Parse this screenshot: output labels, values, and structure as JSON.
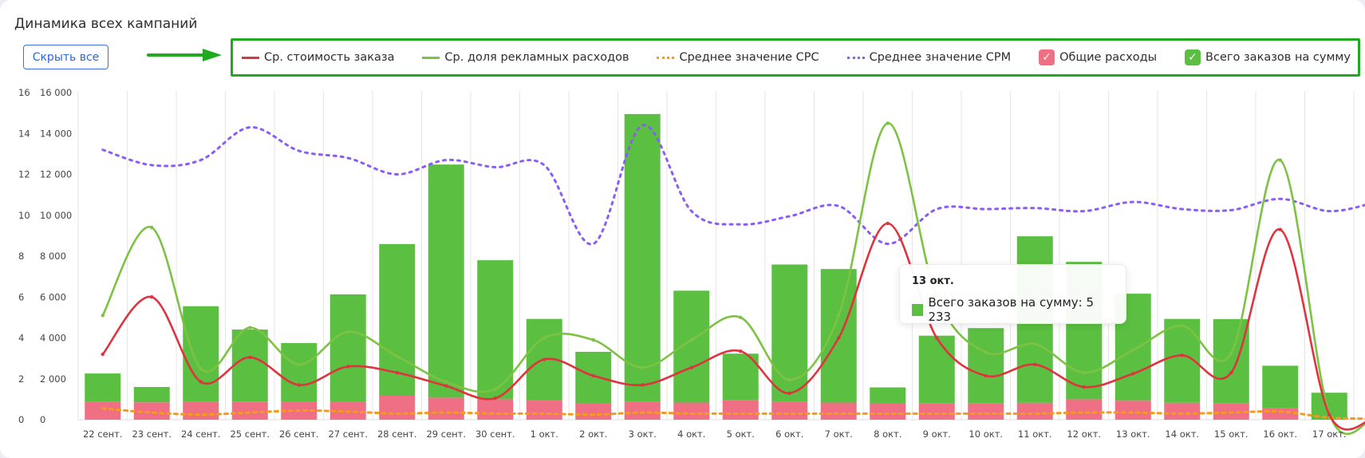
{
  "title": "Динамика всех кампаний",
  "hide_all_label": "Скрыть все",
  "colors": {
    "order_cost": "#e0333e",
    "ad_share": "#7dc242",
    "cpc": "#f59a1b",
    "cpm": "#8b5cf6",
    "total_spend": "#ef6f85",
    "total_orders": "#5bbf41"
  },
  "legend": [
    {
      "label": "Ср. стоимость заказа",
      "type": "line",
      "color": "#e0333e"
    },
    {
      "label": "Ср. доля рекламных расходов",
      "type": "line",
      "color": "#7dc242"
    },
    {
      "label": "Среднее значение CPC",
      "type": "dotted",
      "color": "#f59a1b"
    },
    {
      "label": "Среднее значение CPM",
      "type": "dotted",
      "color": "#8b5cf6"
    },
    {
      "label": "Общие расходы",
      "type": "checkbox",
      "color": "#ef6f85",
      "checked": true
    },
    {
      "label": "Всего заказов на сумму",
      "type": "checkbox",
      "color": "#5bbf41",
      "checked": true
    }
  ],
  "tooltip": {
    "date": "13 окт.",
    "series": "Всего заказов на сумму",
    "value": "5 233",
    "text": "Всего заказов на сумму: 5 233"
  },
  "chart_data": {
    "type": "bar",
    "categories": [
      "22 сент.",
      "23 сент.",
      "24 сент.",
      "25 сент.",
      "26 сент.",
      "27 сент.",
      "28 сент.",
      "29 сент.",
      "30 сент.",
      "1 окт.",
      "2 окт.",
      "3 окт.",
      "4 окт.",
      "5 окт.",
      "6 окт.",
      "7 окт.",
      "8 окт.",
      "9 окт.",
      "10 окт.",
      "11 окт.",
      "12 окт.",
      "13 окт.",
      "14 окт.",
      "15 окт.",
      "16 окт.",
      "17 окт."
    ],
    "y_left_ticks": [
      "0",
      "2",
      "4",
      "6",
      "8",
      "10",
      "12",
      "14",
      "16"
    ],
    "y_right_ticks": [
      "0",
      "2 000",
      "4 000",
      "6 000",
      "8 000",
      "10 000",
      "12 000",
      "14 000",
      "16 000"
    ],
    "ylim_left": [
      0,
      16
    ],
    "ylim_right": [
      0,
      16000
    ],
    "bar_series": [
      {
        "name": "Общие расходы",
        "axis": "right",
        "values": [
          870,
          850,
          870,
          890,
          880,
          880,
          1170,
          1080,
          1000,
          950,
          820,
          870,
          840,
          970,
          870,
          840,
          820,
          810,
          790,
          830,
          1000,
          930,
          830,
          810,
          560,
          0
        ]
      },
      {
        "name": "Всего заказов на сумму",
        "axis": "right",
        "values": [
          1390,
          750,
          4680,
          3520,
          2870,
          5250,
          7420,
          11400,
          6800,
          3980,
          2500,
          14080,
          5470,
          2260,
          6720,
          6530,
          760,
          3300,
          3690,
          8140,
          6720,
          5233,
          4100,
          4110,
          2080,
          1320
        ]
      }
    ],
    "line_series": [
      {
        "name": "Ср. стоимость заказа",
        "axis": "left",
        "style": "solid",
        "values": [
          3.2,
          6.0,
          1.85,
          3.05,
          1.7,
          2.6,
          2.3,
          1.65,
          1.05,
          2.95,
          2.15,
          1.7,
          2.55,
          3.35,
          1.3,
          4.0,
          9.6,
          4.0,
          2.15,
          2.7,
          1.6,
          2.25,
          3.15,
          2.3,
          9.3,
          0.25
        ]
      },
      {
        "name": "Ср. доля рекламных расходов",
        "axis": "left",
        "style": "solid",
        "values": [
          5.1,
          9.4,
          2.5,
          4.5,
          2.7,
          4.3,
          3.1,
          1.85,
          1.5,
          4.0,
          3.9,
          2.55,
          3.9,
          5.0,
          1.95,
          5.1,
          14.5,
          6.0,
          3.3,
          3.7,
          2.3,
          3.4,
          4.6,
          3.25,
          12.7,
          0.3
        ]
      },
      {
        "name": "Среднее значение CPC",
        "axis": "left",
        "style": "dotted",
        "values": [
          0.55,
          0.35,
          0.25,
          0.35,
          0.45,
          0.4,
          0.3,
          0.35,
          0.3,
          0.3,
          0.25,
          0.35,
          0.3,
          0.3,
          0.3,
          0.3,
          0.3,
          0.3,
          0.3,
          0.3,
          0.35,
          0.35,
          0.3,
          0.35,
          0.4,
          0.1
        ]
      },
      {
        "name": "Среднее значение CPM",
        "axis": "left",
        "style": "dotted",
        "values": [
          13.2,
          12.45,
          12.7,
          14.3,
          13.15,
          12.8,
          12.0,
          12.7,
          12.35,
          12.45,
          8.6,
          14.4,
          10.2,
          9.55,
          9.95,
          10.45,
          8.6,
          10.3,
          10.3,
          10.35,
          10.2,
          10.65,
          10.3,
          10.25,
          10.8,
          10.2
        ]
      }
    ],
    "grid": "vertical",
    "legend_position": "top"
  }
}
